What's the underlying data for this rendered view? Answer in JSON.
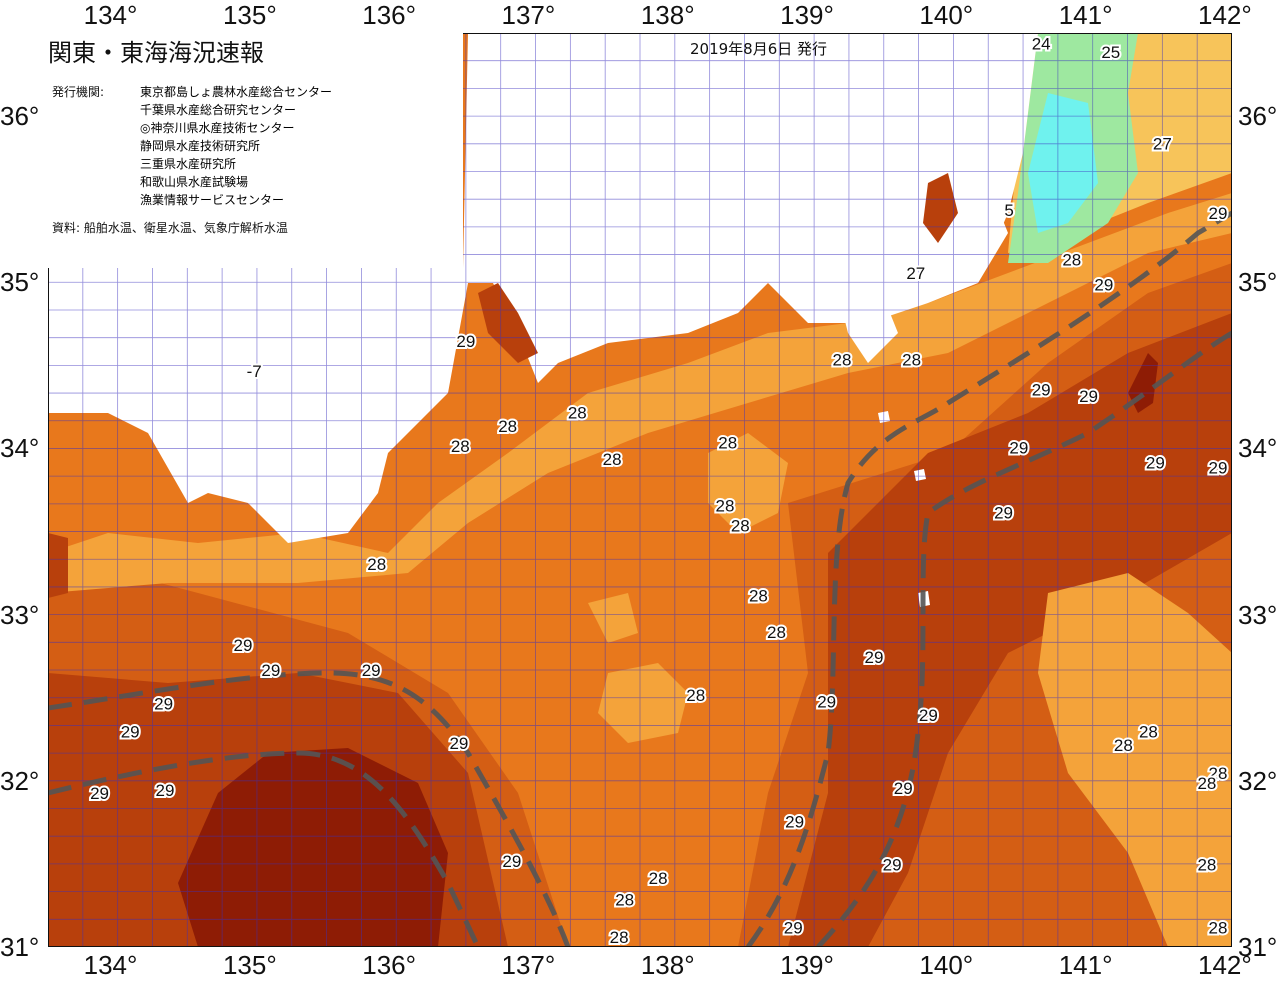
{
  "title": "関東・東海海況速報",
  "issue_date": "2019年8月6日 発行",
  "issuers_label": "発行機関:",
  "issuers": [
    "東京都島しょ農林水産総合センター",
    "千葉県水産総合研究センター",
    "◎神奈川県水産技術センター",
    "静岡県水産技術研究所",
    "三重県水産研究所",
    "和歌山県水産試験場",
    "漁業情報サービスセンター"
  ],
  "sources": "資料: 船舶水温、衛星水温、気象庁解析水温",
  "axes": {
    "lon_labels": [
      "134°",
      "135°",
      "136°",
      "137°",
      "138°",
      "139°",
      "140°",
      "141°",
      "142°"
    ],
    "lat_labels": [
      "36°",
      "35°",
      "34°",
      "33°",
      "32°",
      "31°"
    ],
    "lon_range": [
      133.5,
      142.0
    ],
    "lat_range": [
      31.0,
      36.5
    ]
  },
  "colors": {
    "c24": "#7fe07f",
    "c25": "#9ee8a0",
    "c26": "#f6e58a",
    "c27": "#f7c45a",
    "c28a": "#f4a33a",
    "c28b": "#e8781c",
    "c29a": "#d45e14",
    "c29b": "#b8400c",
    "c30": "#8e1c05",
    "cyan": "#6ff2ee",
    "grid": "#3a2fbf",
    "current": "#555555"
  },
  "isotherm_labels": [
    {
      "text": "24",
      "lon": 140.63,
      "lat": 36.4
    },
    {
      "text": "25",
      "lon": 141.13,
      "lat": 36.35
    },
    {
      "text": "27",
      "lon": 141.5,
      "lat": 35.8
    },
    {
      "text": "5",
      "lon": 140.4,
      "lat": 35.4
    },
    {
      "text": "29",
      "lon": 141.93,
      "lat": 35.38
    },
    {
      "text": "28",
      "lon": 140.85,
      "lat": 35.1
    },
    {
      "text": "29",
      "lon": 141.08,
      "lat": 34.95
    },
    {
      "text": "27",
      "lon": 139.73,
      "lat": 35.02
    },
    {
      "text": "29",
      "lon": 136.5,
      "lat": 34.61
    },
    {
      "text": "28",
      "lon": 139.2,
      "lat": 34.5
    },
    {
      "text": "28",
      "lon": 139.7,
      "lat": 34.5
    },
    {
      "text": "29",
      "lon": 140.63,
      "lat": 34.32
    },
    {
      "text": "29",
      "lon": 140.97,
      "lat": 34.28
    },
    {
      "text": "28",
      "lon": 137.3,
      "lat": 34.18
    },
    {
      "text": "28",
      "lon": 136.8,
      "lat": 34.1
    },
    {
      "text": "28",
      "lon": 136.46,
      "lat": 33.98
    },
    {
      "text": "28",
      "lon": 138.38,
      "lat": 34.0
    },
    {
      "text": "29",
      "lon": 140.47,
      "lat": 33.97
    },
    {
      "text": "28",
      "lon": 137.55,
      "lat": 33.9
    },
    {
      "text": "29",
      "lon": 141.45,
      "lat": 33.88
    },
    {
      "text": "29",
      "lon": 142.0,
      "lat": 33.85
    },
    {
      "text": "28",
      "lon": 138.36,
      "lat": 33.62
    },
    {
      "text": "29",
      "lon": 140.36,
      "lat": 33.58
    },
    {
      "text": "28",
      "lon": 138.47,
      "lat": 33.5
    },
    {
      "text": "28",
      "lon": 135.86,
      "lat": 33.27
    },
    {
      "text": "28",
      "lon": 138.6,
      "lat": 33.08
    },
    {
      "text": "28",
      "lon": 138.73,
      "lat": 32.86
    },
    {
      "text": "29",
      "lon": 134.9,
      "lat": 32.78
    },
    {
      "text": "29",
      "lon": 139.43,
      "lat": 32.71
    },
    {
      "text": "29",
      "lon": 135.1,
      "lat": 32.63
    },
    {
      "text": "29",
      "lon": 135.82,
      "lat": 32.63
    },
    {
      "text": "28",
      "lon": 138.15,
      "lat": 32.48
    },
    {
      "text": "29",
      "lon": 139.09,
      "lat": 32.44
    },
    {
      "text": "29",
      "lon": 134.33,
      "lat": 32.43
    },
    {
      "text": "29",
      "lon": 139.82,
      "lat": 32.36
    },
    {
      "text": "29",
      "lon": 134.09,
      "lat": 32.26
    },
    {
      "text": "28",
      "lon": 141.4,
      "lat": 32.26
    },
    {
      "text": "28",
      "lon": 141.22,
      "lat": 32.18
    },
    {
      "text": "28",
      "lon": 142.0,
      "lat": 32.01
    },
    {
      "text": "28",
      "lon": 141.82,
      "lat": 31.95
    },
    {
      "text": "29",
      "lon": 136.45,
      "lat": 32.19
    },
    {
      "text": "29",
      "lon": 139.64,
      "lat": 31.92
    },
    {
      "text": "29",
      "lon": 134.34,
      "lat": 31.91
    },
    {
      "text": "29",
      "lon": 133.87,
      "lat": 31.89
    },
    {
      "text": "29",
      "lon": 138.86,
      "lat": 31.72
    },
    {
      "text": "29",
      "lon": 136.83,
      "lat": 31.48
    },
    {
      "text": "29",
      "lon": 139.56,
      "lat": 31.46
    },
    {
      "text": "28",
      "lon": 141.82,
      "lat": 31.46
    },
    {
      "text": "28",
      "lon": 137.88,
      "lat": 31.38
    },
    {
      "text": "28",
      "lon": 137.64,
      "lat": 31.25
    },
    {
      "text": "28",
      "lon": 141.9,
      "lat": 31.08
    },
    {
      "text": "29",
      "lon": 138.85,
      "lat": 31.08
    },
    {
      "text": "28",
      "lon": 137.6,
      "lat": 31.0
    },
    {
      "text": "-7",
      "lon": 134.98,
      "lat": 34.43
    }
  ]
}
